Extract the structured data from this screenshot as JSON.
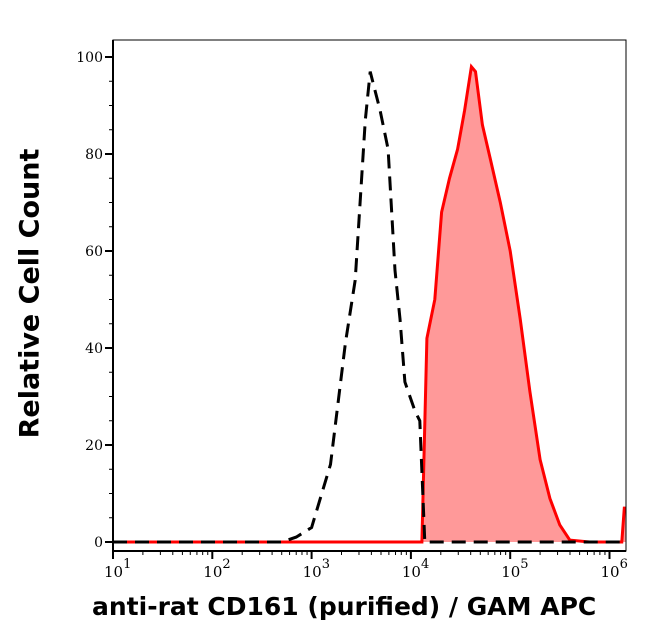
{
  "chart_data": {
    "type": "area",
    "xlabel": "anti-rat CD161 (purified) / GAM APC",
    "ylabel": "Relative Cell Count",
    "x_scale": "log",
    "xlim": [
      10,
      1500000
    ],
    "ylim": [
      0,
      100
    ],
    "x_ticks": [
      {
        "base": "10",
        "exp": "1",
        "v": 10
      },
      {
        "base": "10",
        "exp": "2",
        "v": 100
      },
      {
        "base": "10",
        "exp": "3",
        "v": 1000
      },
      {
        "base": "10",
        "exp": "4",
        "v": 10000
      },
      {
        "base": "10",
        "exp": "5",
        "v": 100000
      },
      {
        "base": "10",
        "exp": "6",
        "v": 1000000
      }
    ],
    "y_ticks": [
      "0",
      "20",
      "40",
      "60",
      "80",
      "100"
    ],
    "grid": false,
    "series": [
      {
        "style": "dashed",
        "color": "#000000",
        "fill": "none",
        "x": [
          10,
          500,
          700,
          1000,
          1550,
          2190,
          2750,
          3470,
          3890,
          4900,
          5890,
          6920,
          7760,
          8710,
          11000,
          12300,
          13800,
          1500000
        ],
        "y": [
          0,
          0,
          1,
          3,
          16,
          41,
          54,
          87,
          97,
          89,
          81,
          56,
          46,
          33,
          27,
          25,
          0,
          0
        ]
      },
      {
        "style": "solid",
        "color": "#ff0000",
        "fill": "#ff9999",
        "x": [
          10,
          12900,
          14500,
          17400,
          20400,
          24500,
          29500,
          34700,
          40700,
          44700,
          52500,
          63100,
          79400,
          100000,
          126000,
          158000,
          200000,
          251000,
          316000,
          398000,
          631000,
          1330000,
          1410000,
          1500000
        ],
        "y": [
          0,
          0,
          42,
          50,
          68,
          75,
          81,
          89,
          98,
          97,
          86,
          79,
          70,
          60,
          46,
          31,
          17,
          9,
          3.5,
          0.4,
          0,
          0,
          7,
          7
        ]
      }
    ]
  }
}
